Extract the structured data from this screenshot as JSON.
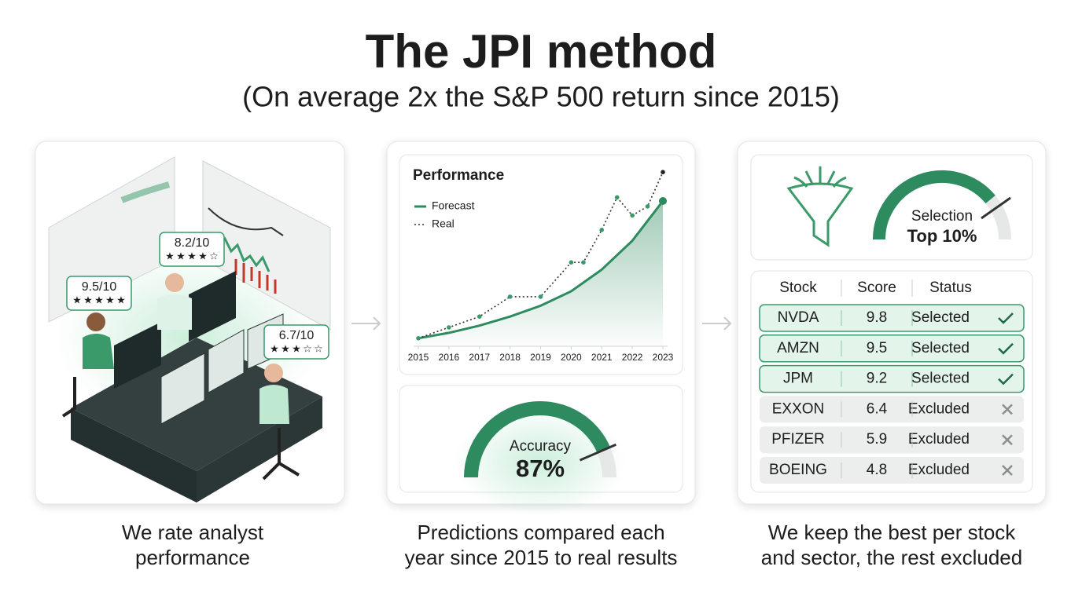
{
  "header": {
    "title": "The JPI method",
    "subtitle": "(On average 2x the S&P 500 return since 2015)"
  },
  "ratings": [
    {
      "label": "9.5/10",
      "stars": 5
    },
    {
      "label": "8.2/10",
      "stars": 4
    },
    {
      "label": "6.7/10",
      "stars": 3
    }
  ],
  "chart_data": {
    "type": "line",
    "title": "Performance",
    "xlim": [
      2015,
      2023
    ],
    "ylim": [
      0,
      100
    ],
    "xticks": [
      2015,
      2016,
      2017,
      2018,
      2019,
      2020,
      2021,
      2022,
      2023
    ],
    "series": [
      {
        "name": "Forecast",
        "color": "#2e8b5f",
        "style": "solid",
        "x": [
          2015,
          2016,
          2017,
          2018,
          2019,
          2020,
          2021,
          2022,
          2023
        ],
        "values": [
          4,
          7,
          11,
          16,
          22,
          30,
          42,
          58,
          80
        ]
      },
      {
        "name": "Real",
        "color": "#333333",
        "style": "dotted",
        "marker_color": "#3a9a6a",
        "last_marker_color": "#222222",
        "x": [
          2015,
          2016,
          2017,
          2018,
          2019,
          2020,
          2020.4,
          2021,
          2021.5,
          2022,
          2022.5,
          2023
        ],
        "values": [
          4,
          10,
          16,
          27,
          27,
          46,
          46,
          64,
          82,
          72,
          77,
          96
        ]
      }
    ]
  },
  "accuracy": {
    "label": "Accuracy",
    "value": 87,
    "value_label": "87%",
    "range": [
      0,
      100
    ]
  },
  "selection": {
    "label": "Selection",
    "value_label": "Top 10%"
  },
  "table": {
    "headers": [
      "Stock",
      "Score",
      "Status"
    ],
    "rows": [
      [
        "NVDA",
        9.8,
        "Selected"
      ],
      [
        "AMZN",
        9.5,
        "Selected"
      ],
      [
        "JPM",
        9.2,
        "Selected"
      ],
      [
        "EXXON",
        6.4,
        "Excluded"
      ],
      [
        "PFIZER",
        5.9,
        "Excluded"
      ],
      [
        "BOEING",
        4.8,
        "Excluded"
      ]
    ],
    "highlight": [
      true,
      true,
      true,
      false,
      false,
      false
    ]
  },
  "captions": [
    [
      "We rate analyst",
      "performance"
    ],
    [
      "Predictions compared each",
      "year since 2015 to real results"
    ],
    [
      "We keep the best per stock",
      "and sector, the rest excluded"
    ]
  ]
}
